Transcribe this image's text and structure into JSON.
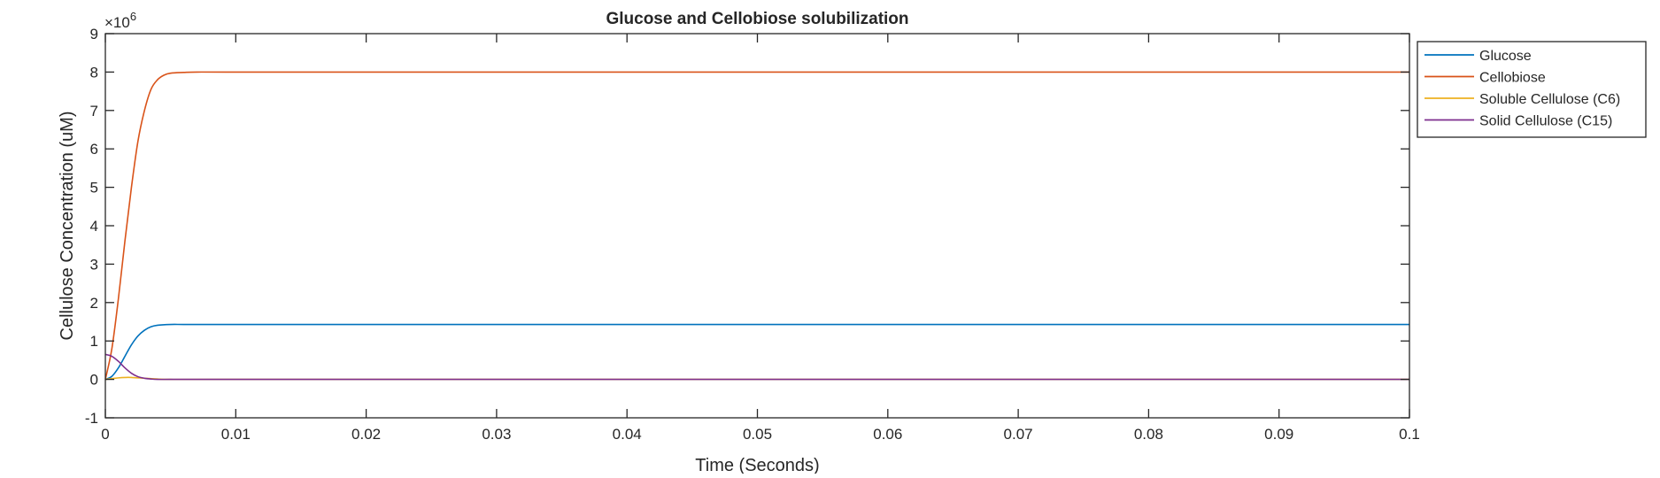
{
  "chart_data": {
    "type": "line",
    "title": "Glucose and Cellobiose solubilization",
    "xlabel": "Time (Seconds)",
    "ylabel": "Cellulose Concentration (uM)",
    "y_multiplier_base": "×10",
    "y_multiplier_exponent": "6",
    "xlim": [
      0,
      0.1
    ],
    "ylim": [
      -1,
      9
    ],
    "x_ticks": [
      0,
      0.01,
      0.02,
      0.03,
      0.04,
      0.05,
      0.06,
      0.07,
      0.08,
      0.09,
      0.1
    ],
    "x_tick_labels": [
      "0",
      "0.01",
      "0.02",
      "0.03",
      "0.04",
      "0.05",
      "0.06",
      "0.07",
      "0.08",
      "0.09",
      "0.1"
    ],
    "y_ticks": [
      -1,
      0,
      1,
      2,
      3,
      4,
      5,
      6,
      7,
      8,
      9
    ],
    "y_tick_labels": [
      "-1",
      "0",
      "1",
      "2",
      "3",
      "4",
      "5",
      "6",
      "7",
      "8",
      "9"
    ],
    "grid": false,
    "legend_position": "outside-top-right",
    "series": [
      {
        "name": "Glucose",
        "color": "#0072BD",
        "x": [
          0,
          0.0005,
          0.001,
          0.0015,
          0.002,
          0.0025,
          0.003,
          0.0035,
          0.004,
          0.005,
          0.006,
          0.008,
          0.01,
          0.02,
          0.05,
          0.1
        ],
        "values": [
          0,
          0.08,
          0.3,
          0.6,
          0.9,
          1.13,
          1.28,
          1.37,
          1.41,
          1.43,
          1.43,
          1.43,
          1.43,
          1.43,
          1.43,
          1.43
        ]
      },
      {
        "name": "Cellobiose",
        "color": "#D95319",
        "x": [
          0,
          0.0005,
          0.001,
          0.0015,
          0.002,
          0.0025,
          0.003,
          0.0035,
          0.004,
          0.0045,
          0.005,
          0.006,
          0.007,
          0.01,
          0.02,
          0.05,
          0.1
        ],
        "values": [
          0,
          0.8,
          2.1,
          3.6,
          5.0,
          6.2,
          7.0,
          7.55,
          7.8,
          7.92,
          7.97,
          7.99,
          8.0,
          8.0,
          8.0,
          8.0,
          8.0
        ]
      },
      {
        "name": "Soluble Cellulose (C6)",
        "color": "#EDB120",
        "x": [
          0,
          0.0005,
          0.001,
          0.0015,
          0.002,
          0.003,
          0.004,
          0.005,
          0.01,
          0.05,
          0.1
        ],
        "values": [
          0,
          0.02,
          0.04,
          0.05,
          0.05,
          0.03,
          0.01,
          0.0,
          0.0,
          0.0,
          0.0
        ]
      },
      {
        "name": "Solid Cellulose (C15)",
        "color": "#7E2F8E",
        "x": [
          0,
          0.0005,
          0.001,
          0.0015,
          0.002,
          0.0025,
          0.003,
          0.0035,
          0.004,
          0.005,
          0.01,
          0.05,
          0.1
        ],
        "values": [
          0.65,
          0.6,
          0.47,
          0.3,
          0.16,
          0.07,
          0.03,
          0.01,
          0.0,
          0.0,
          0.0,
          0.0,
          0.0
        ]
      }
    ]
  }
}
